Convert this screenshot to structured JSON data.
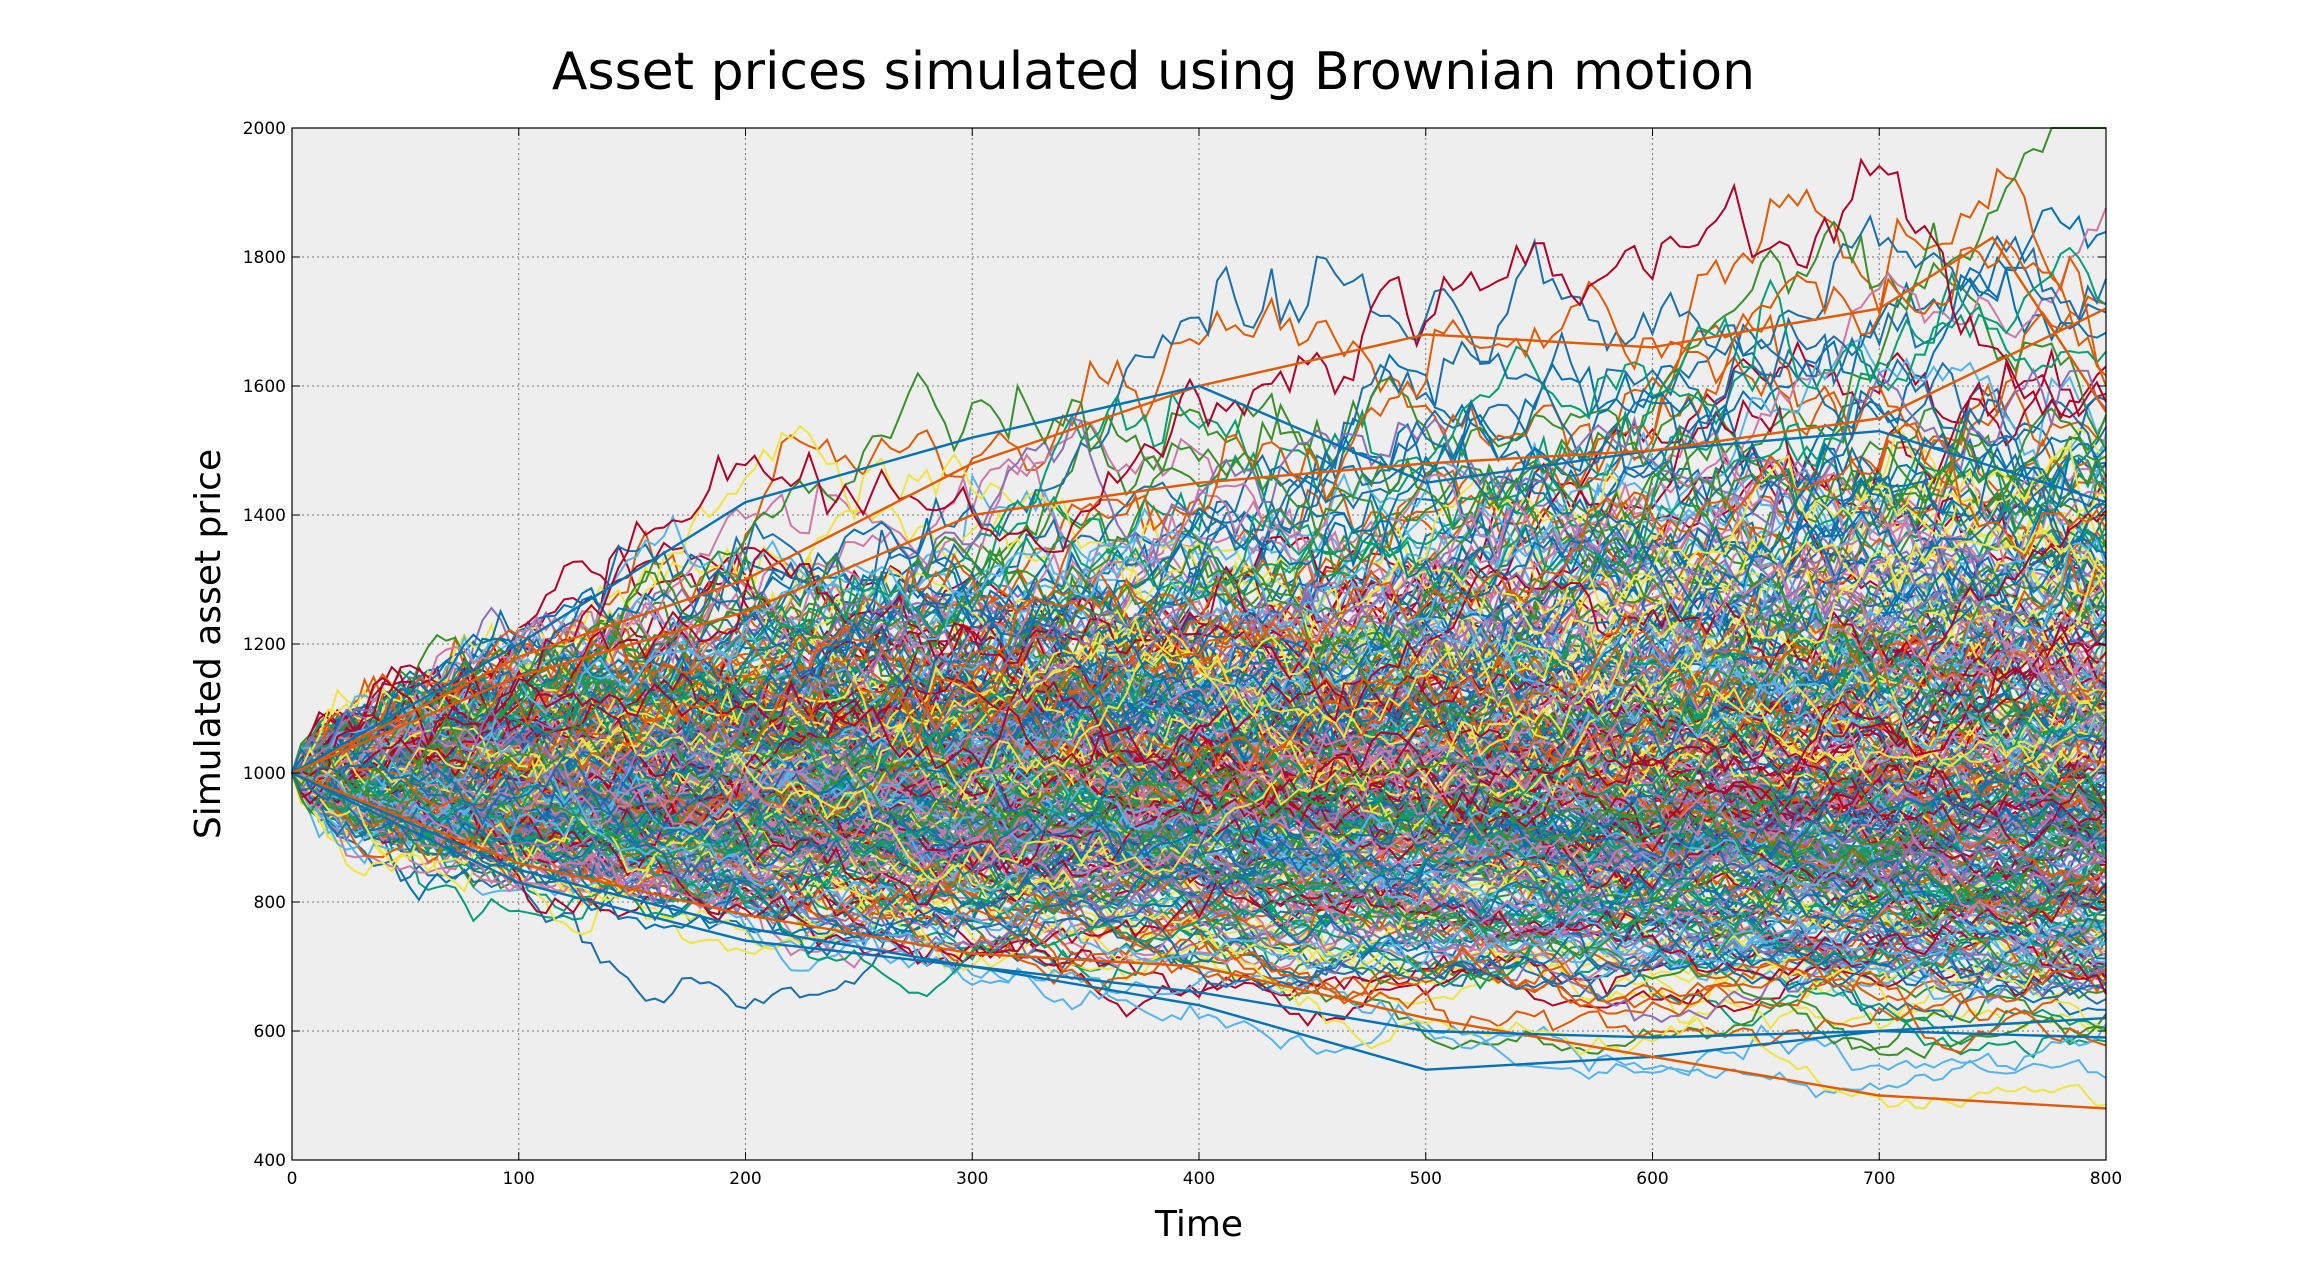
{
  "chart_data": {
    "type": "line",
    "title": "Asset prices simulated using Brownian motion",
    "xlabel": "Time",
    "ylabel": "Simulated asset price",
    "xlim": [
      0,
      800
    ],
    "ylim": [
      400,
      2000
    ],
    "xticks": [
      0,
      100,
      200,
      300,
      400,
      500,
      600,
      700,
      800
    ],
    "yticks": [
      400,
      600,
      800,
      1000,
      1200,
      1400,
      1600,
      1800,
      2000
    ],
    "xtick_labels": [
      "0",
      "100",
      "200",
      "300",
      "400",
      "500",
      "600",
      "700",
      "800"
    ],
    "ytick_labels": [
      "400",
      "600",
      "800",
      "1000",
      "1200",
      "1400",
      "1600",
      "1800",
      "2000"
    ],
    "grid": true,
    "background": "#eeeeee",
    "num_paths_shown": 400,
    "start_value": 1000,
    "time_steps": 800,
    "simulated_path_colors": [
      "#0072b2",
      "#e05a00",
      "#009e73",
      "#cc79a7",
      "#f0e442",
      "#56b4e9",
      "#b0002a",
      "#8a6fb7",
      "#3a8f2b",
      "#1b6fa8"
    ],
    "paths_approx": [
      {
        "x": [
          0,
          100,
          200,
          300,
          400,
          500,
          600,
          700,
          750,
          800
        ],
        "y": [
          1000,
          1180,
          1300,
          1480,
          1600,
          1680,
          1660,
          1720,
          1830,
          1560
        ]
      },
      {
        "x": [
          0,
          100,
          200,
          300,
          400,
          500,
          600,
          700,
          800
        ],
        "y": [
          1000,
          1200,
          1420,
          1520,
          1600,
          1450,
          1500,
          1530,
          1420
        ]
      },
      {
        "x": [
          0,
          100,
          200,
          300,
          400,
          500,
          600,
          700,
          800
        ],
        "y": [
          1000,
          1150,
          1250,
          1400,
          1450,
          1480,
          1500,
          1550,
          1720
        ]
      },
      {
        "x": [
          0,
          100,
          200,
          300,
          400,
          500,
          600,
          700,
          800
        ],
        "y": [
          1000,
          850,
          760,
          700,
          640,
          540,
          560,
          600,
          620
        ]
      },
      {
        "x": [
          0,
          100,
          200,
          300,
          400,
          500,
          600,
          700,
          800
        ],
        "y": [
          1000,
          860,
          780,
          720,
          700,
          620,
          560,
          500,
          480
        ]
      },
      {
        "x": [
          0,
          100,
          200,
          300,
          400,
          500,
          600,
          700,
          800
        ],
        "y": [
          1000,
          830,
          740,
          700,
          660,
          600,
          590,
          600,
          590
        ]
      }
    ]
  }
}
